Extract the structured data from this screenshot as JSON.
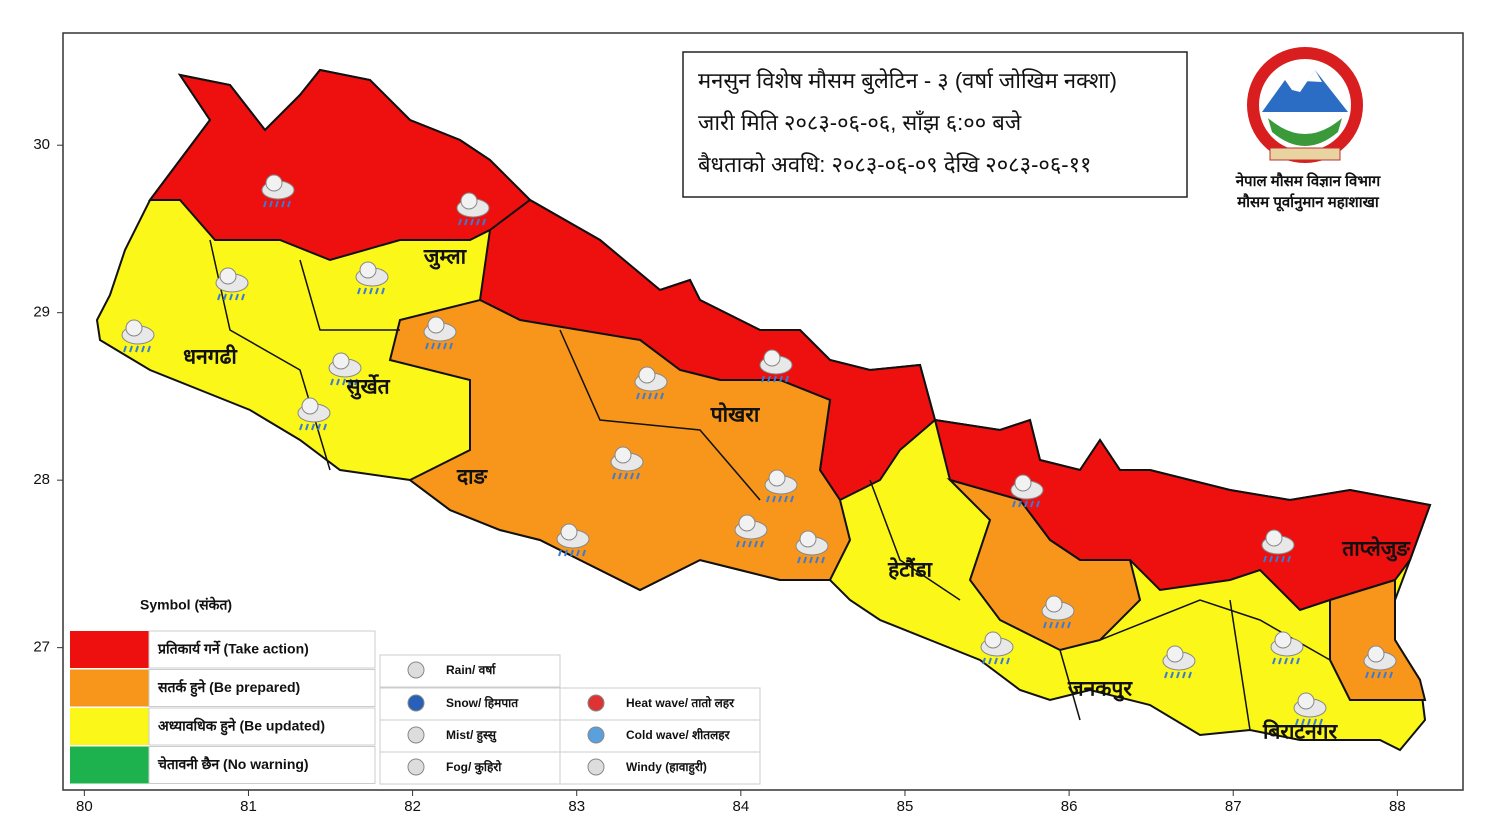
{
  "header": {
    "lines": [
      "मनसुन  विशेष मौसम बुलेटिन - ३ (वर्षा जोखिम नक्शा)",
      "जारी मिति २०८३-०६-०६, साँझ ६:०० बजे",
      "बैधताको अवधि: २०८३-०६-०९ देखि २०८३-०६-११"
    ]
  },
  "logo": {
    "lines": [
      "नेपाल मौसम विज्ञान विभाग",
      "मौसम पूर्वानुमान महाशाखा"
    ]
  },
  "map": {
    "xlim": [
      79.87,
      88.4
    ],
    "ylim": [
      26.15,
      30.67
    ],
    "xticks": [
      80,
      81,
      82,
      83,
      84,
      85,
      86,
      87,
      88
    ],
    "yticks": [
      27,
      28,
      29,
      30
    ]
  },
  "places": [
    "जुम्ला",
    "धनगढी",
    "सुर्खेत",
    "पोखरा",
    "दाङ",
    "हेटौंडा",
    "ताप्लेजुङ",
    "जनकपुर",
    "बिराटनगर"
  ],
  "legend": {
    "title": "Symbol (संकेत)",
    "levels": [
      {
        "label": "प्रतिकार्य गर्ने (Take action)",
        "color": "#ee0f0f"
      },
      {
        "label": "सतर्क हुने (Be prepared)",
        "color": "#f7961b"
      },
      {
        "label": "अध्यावधिक हुने (Be updated)",
        "color": "#fbf718"
      },
      {
        "label": "चेतावनी छैन (No warning)",
        "color": "#1eb24e"
      }
    ],
    "symbols": [
      "Rain/ वर्षा",
      "Snow/ हिमपात",
      "Mist/ हुस्सु",
      "Fog/ कुहिरो",
      "Heat wave/ तातो लहर",
      "Cold wave/ शीतलहर",
      "Windy (हावाहुरी)"
    ]
  }
}
